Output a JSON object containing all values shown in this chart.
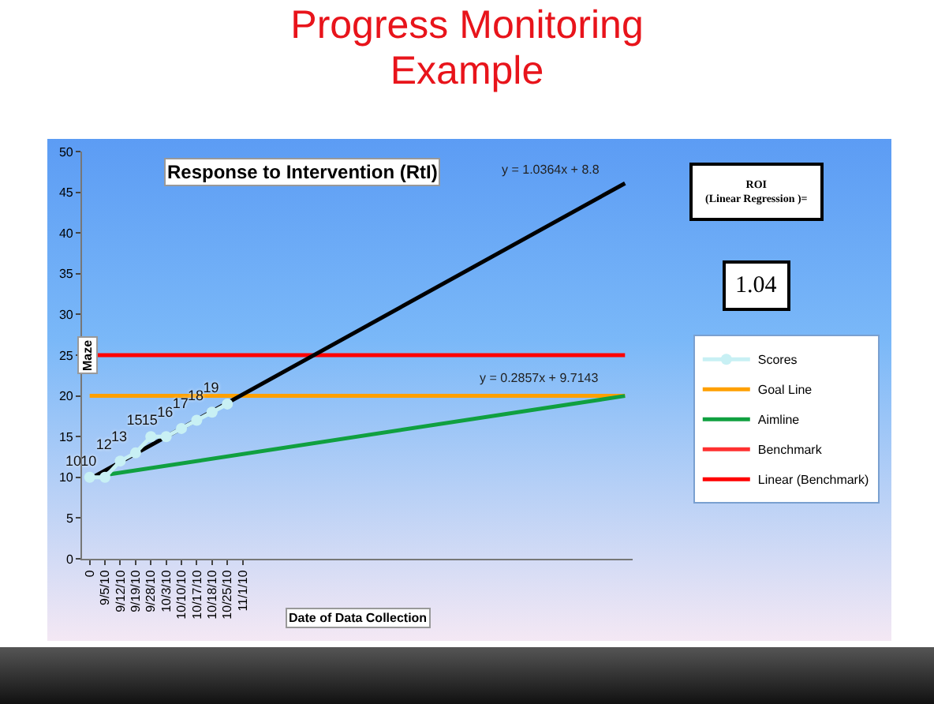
{
  "chart_data": {
    "type": "line",
    "title": "Progress Monitoring Example",
    "subtitle": "Response to Intervention (RtI)",
    "xlabel": "Date of Data Collection",
    "ylabel": "Maze",
    "categories": [
      "0",
      "9/5/10",
      "9/12/10",
      "9/19/10",
      "9/28/10",
      "10/3/10",
      "10/10/10",
      "10/17/10",
      "10/18/10",
      "10/25/10",
      "11/1/10",
      null,
      null,
      null,
      null,
      null,
      null,
      null,
      null,
      null,
      null,
      null,
      null,
      null,
      null,
      null,
      null,
      null,
      null,
      null,
      null,
      null,
      null,
      null,
      null,
      null
    ],
    "series": [
      {
        "name": "Scores",
        "color": "#c8f0f4",
        "marker": "circle",
        "values": [
          10,
          10,
          12,
          13,
          15,
          15,
          16,
          17,
          18,
          19,
          null,
          null,
          null,
          null,
          null,
          null,
          null,
          null,
          null,
          null,
          null,
          null,
          null,
          null,
          null,
          null,
          null,
          null,
          null,
          null,
          null,
          null,
          null,
          null,
          null,
          null
        ],
        "value_labels": [
          "10",
          "10",
          "12",
          "13",
          "15",
          "15",
          "16",
          "17",
          "18",
          "19",
          null,
          null,
          null,
          null,
          null,
          null,
          null,
          null,
          null,
          null,
          null,
          null,
          null,
          null,
          null,
          null,
          null,
          null,
          null,
          null,
          null,
          null,
          null,
          null,
          null,
          null
        ]
      },
      {
        "name": "Goal Line",
        "color": "#ffa000",
        "values": [
          20,
          20,
          20,
          20,
          20,
          20,
          20,
          20,
          20,
          20,
          20,
          20,
          20,
          20,
          20,
          20,
          20,
          20,
          20,
          20,
          20,
          20,
          20,
          20,
          20,
          20,
          20,
          20,
          20,
          20,
          20,
          20,
          20,
          20,
          20,
          20
        ]
      },
      {
        "name": "Aimline",
        "color": "#10a040",
        "values": [
          10,
          null,
          null,
          null,
          null,
          null,
          null,
          null,
          null,
          null,
          null,
          null,
          null,
          null,
          null,
          null,
          null,
          null,
          null,
          null,
          null,
          null,
          null,
          null,
          null,
          null,
          null,
          null,
          null,
          null,
          null,
          null,
          null,
          null,
          null,
          20
        ]
      },
      {
        "name": "Benchmark",
        "color": "#ff3030",
        "values": [
          null,
          null,
          null,
          null,
          null,
          null,
          null,
          null,
          null,
          null,
          null,
          null,
          null,
          null,
          null,
          null,
          null,
          null,
          null,
          null,
          null,
          null,
          null,
          null,
          null,
          null,
          null,
          null,
          null,
          null,
          null,
          null,
          null,
          null,
          null,
          null
        ]
      },
      {
        "name": "Linear (Benchmark)",
        "color": "#ff0000",
        "values": [
          25,
          null,
          null,
          null,
          null,
          null,
          null,
          null,
          null,
          null,
          null,
          null,
          null,
          null,
          null,
          null,
          null,
          null,
          null,
          null,
          null,
          null,
          null,
          null,
          null,
          null,
          null,
          null,
          null,
          null,
          null,
          null,
          null,
          null,
          null,
          25
        ]
      },
      {
        "color": "#000000",
        "values": [
          9.8,
          null,
          null,
          null,
          null,
          null,
          null,
          null,
          null,
          null,
          null,
          null,
          null,
          null,
          null,
          null,
          null,
          null,
          null,
          null,
          null,
          null,
          null,
          null,
          null,
          null,
          null,
          null,
          null,
          null,
          null,
          null,
          null,
          null,
          null,
          46.1
        ]
      }
    ],
    "ylim": [
      0,
      50
    ],
    "yticks": [
      0,
      5,
      10,
      15,
      20,
      25,
      30,
      35,
      40,
      45,
      50
    ],
    "grid": false,
    "legend": "right",
    "line_style": "solid",
    "annotations": [
      "y = 1.0364x + 8.8",
      "y = 0.2857x + 9.7143",
      "ROI (Linear Regression )=",
      "1.04"
    ]
  }
}
